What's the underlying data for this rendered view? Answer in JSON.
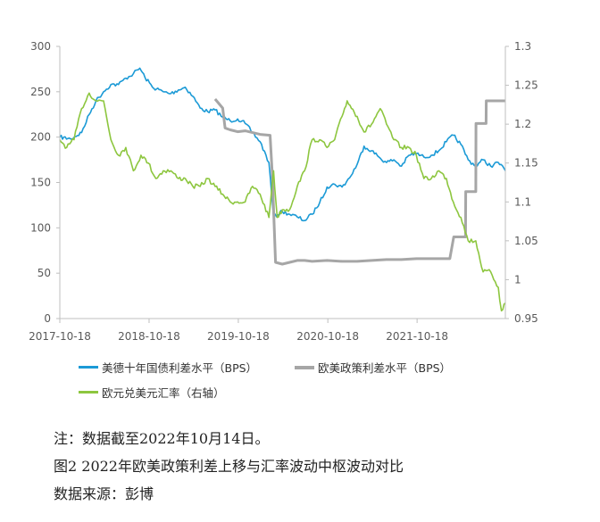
{
  "chart_data": {
    "type": "line",
    "x_ticks": [
      "2017-10-18",
      "2018-10-18",
      "2019-10-18",
      "2020-10-18",
      "2021-10-18"
    ],
    "left_axis": {
      "ticks": [
        0,
        50,
        100,
        150,
        200,
        250,
        300
      ],
      "ylim": [
        0,
        300
      ]
    },
    "right_axis": {
      "ticks": [
        0.95,
        1,
        1.05,
        1.1,
        1.15,
        1.2,
        1.25,
        1.3
      ],
      "ylim": [
        0.95,
        1.3
      ]
    },
    "xlim": [
      "2017-10-18",
      "2022-10-14"
    ],
    "legend_position": "bottom",
    "series": [
      {
        "name": "美德十年国债利差水平（BPS）",
        "axis": "left",
        "color": "#1b9ad6",
        "points": [
          [
            "2017-10-18",
            200
          ],
          [
            "2017-12-01",
            198
          ],
          [
            "2018-01-15",
            205
          ],
          [
            "2018-02-15",
            225
          ],
          [
            "2018-03-15",
            240
          ],
          [
            "2018-04-15",
            250
          ],
          [
            "2018-05-15",
            258
          ],
          [
            "2018-06-15",
            258
          ],
          [
            "2018-07-15",
            265
          ],
          [
            "2018-08-15",
            270
          ],
          [
            "2018-09-10",
            276
          ],
          [
            "2018-10-01",
            266
          ],
          [
            "2018-11-01",
            255
          ],
          [
            "2018-12-15",
            250
          ],
          [
            "2019-01-15",
            248
          ],
          [
            "2019-02-15",
            252
          ],
          [
            "2019-03-15",
            255
          ],
          [
            "2019-04-15",
            245
          ],
          [
            "2019-05-15",
            232
          ],
          [
            "2019-06-15",
            228
          ],
          [
            "2019-07-15",
            230
          ],
          [
            "2019-08-15",
            222
          ],
          [
            "2019-09-15",
            218
          ],
          [
            "2019-10-15",
            220
          ],
          [
            "2019-11-15",
            215
          ],
          [
            "2019-12-15",
            205
          ],
          [
            "2020-01-15",
            195
          ],
          [
            "2020-02-20",
            172
          ],
          [
            "2020-03-10",
            112
          ],
          [
            "2020-04-15",
            118
          ],
          [
            "2020-05-15",
            115
          ],
          [
            "2020-06-15",
            112
          ],
          [
            "2020-07-15",
            108
          ],
          [
            "2020-08-15",
            115
          ],
          [
            "2020-09-15",
            128
          ],
          [
            "2020-10-15",
            145
          ],
          [
            "2020-11-15",
            148
          ],
          [
            "2020-12-15",
            145
          ],
          [
            "2021-01-15",
            155
          ],
          [
            "2021-02-15",
            170
          ],
          [
            "2021-03-15",
            190
          ],
          [
            "2021-04-15",
            185
          ],
          [
            "2021-05-15",
            178
          ],
          [
            "2021-06-15",
            172
          ],
          [
            "2021-07-15",
            175
          ],
          [
            "2021-08-15",
            168
          ],
          [
            "2021-09-15",
            180
          ],
          [
            "2021-10-15",
            182
          ],
          [
            "2021-11-15",
            178
          ],
          [
            "2021-12-15",
            180
          ],
          [
            "2022-01-15",
            185
          ],
          [
            "2022-02-15",
            195
          ],
          [
            "2022-03-15",
            202
          ],
          [
            "2022-04-15",
            192
          ],
          [
            "2022-05-15",
            175
          ],
          [
            "2022-06-15",
            168
          ],
          [
            "2022-07-15",
            175
          ],
          [
            "2022-08-15",
            168
          ],
          [
            "2022-09-15",
            172
          ],
          [
            "2022-10-14",
            163
          ]
        ]
      },
      {
        "name": "欧美政策利差水平（BPS）",
        "axis": "left",
        "color": "#a6a6a6",
        "points": [
          [
            "2019-07-15",
            242
          ],
          [
            "2019-08-15",
            232
          ],
          [
            "2019-08-25",
            210
          ],
          [
            "2019-09-15",
            208
          ],
          [
            "2019-10-15",
            206
          ],
          [
            "2019-11-15",
            207
          ],
          [
            "2019-12-15",
            205
          ],
          [
            "2020-01-15",
            203
          ],
          [
            "2020-02-25",
            202
          ],
          [
            "2020-03-05",
            158
          ],
          [
            "2020-03-18",
            62
          ],
          [
            "2020-04-15",
            60
          ],
          [
            "2020-05-15",
            62
          ],
          [
            "2020-06-15",
            64
          ],
          [
            "2020-07-15",
            64
          ],
          [
            "2020-08-15",
            63
          ],
          [
            "2020-10-15",
            64
          ],
          [
            "2020-12-15",
            63
          ],
          [
            "2021-02-15",
            63
          ],
          [
            "2021-04-15",
            64
          ],
          [
            "2021-06-15",
            65
          ],
          [
            "2021-08-15",
            65
          ],
          [
            "2021-10-15",
            66
          ],
          [
            "2021-12-15",
            66
          ],
          [
            "2022-02-15",
            66
          ],
          [
            "2022-03-01",
            66
          ],
          [
            "2022-03-17",
            90
          ],
          [
            "2022-05-04",
            90
          ],
          [
            "2022-05-05",
            140
          ],
          [
            "2022-06-15",
            140
          ],
          [
            "2022-06-16",
            215
          ],
          [
            "2022-07-27",
            215
          ],
          [
            "2022-07-28",
            240
          ],
          [
            "2022-10-14",
            240
          ]
        ]
      },
      {
        "name": "欧元兑美元汇率（右轴）",
        "axis": "right",
        "color": "#8dc63f",
        "points": [
          [
            "2017-10-18",
            1.18
          ],
          [
            "2017-11-15",
            1.17
          ],
          [
            "2017-12-15",
            1.18
          ],
          [
            "2018-01-15",
            1.22
          ],
          [
            "2018-02-15",
            1.24
          ],
          [
            "2018-03-15",
            1.23
          ],
          [
            "2018-04-15",
            1.23
          ],
          [
            "2018-05-15",
            1.18
          ],
          [
            "2018-06-15",
            1.16
          ],
          [
            "2018-07-15",
            1.17
          ],
          [
            "2018-08-15",
            1.14
          ],
          [
            "2018-09-15",
            1.16
          ],
          [
            "2018-10-15",
            1.15
          ],
          [
            "2018-11-15",
            1.13
          ],
          [
            "2018-12-15",
            1.14
          ],
          [
            "2019-01-15",
            1.14
          ],
          [
            "2019-02-15",
            1.13
          ],
          [
            "2019-03-15",
            1.13
          ],
          [
            "2019-04-15",
            1.12
          ],
          [
            "2019-05-15",
            1.12
          ],
          [
            "2019-06-15",
            1.13
          ],
          [
            "2019-07-15",
            1.12
          ],
          [
            "2019-08-15",
            1.11
          ],
          [
            "2019-09-15",
            1.1
          ],
          [
            "2019-10-15",
            1.1
          ],
          [
            "2019-11-15",
            1.1
          ],
          [
            "2019-12-15",
            1.12
          ],
          [
            "2020-01-15",
            1.11
          ],
          [
            "2020-02-20",
            1.08
          ],
          [
            "2020-03-10",
            1.14
          ],
          [
            "2020-03-25",
            1.08
          ],
          [
            "2020-04-15",
            1.09
          ],
          [
            "2020-05-15",
            1.09
          ],
          [
            "2020-06-15",
            1.12
          ],
          [
            "2020-07-15",
            1.14
          ],
          [
            "2020-08-15",
            1.18
          ],
          [
            "2020-09-15",
            1.18
          ],
          [
            "2020-10-15",
            1.17
          ],
          [
            "2020-11-15",
            1.18
          ],
          [
            "2020-12-15",
            1.21
          ],
          [
            "2021-01-05",
            1.23
          ],
          [
            "2021-02-15",
            1.21
          ],
          [
            "2021-03-15",
            1.19
          ],
          [
            "2021-04-15",
            1.2
          ],
          [
            "2021-05-20",
            1.22
          ],
          [
            "2021-06-15",
            1.2
          ],
          [
            "2021-07-15",
            1.18
          ],
          [
            "2021-08-15",
            1.17
          ],
          [
            "2021-09-15",
            1.17
          ],
          [
            "2021-10-15",
            1.16
          ],
          [
            "2021-11-15",
            1.13
          ],
          [
            "2021-12-15",
            1.13
          ],
          [
            "2022-01-15",
            1.14
          ],
          [
            "2022-02-15",
            1.13
          ],
          [
            "2022-03-15",
            1.1
          ],
          [
            "2022-04-15",
            1.08
          ],
          [
            "2022-05-15",
            1.05
          ],
          [
            "2022-06-15",
            1.05
          ],
          [
            "2022-07-15",
            1.01
          ],
          [
            "2022-08-15",
            1.01
          ],
          [
            "2022-09-15",
            0.99
          ],
          [
            "2022-09-28",
            0.96
          ],
          [
            "2022-10-14",
            0.97
          ]
        ]
      }
    ]
  },
  "captions": {
    "note": "注：数据截至2022年10月14日。",
    "figure_title": "图2 2022年欧美政策利差上移与汇率波动中枢波动对比",
    "source": "数据来源：彭博"
  }
}
